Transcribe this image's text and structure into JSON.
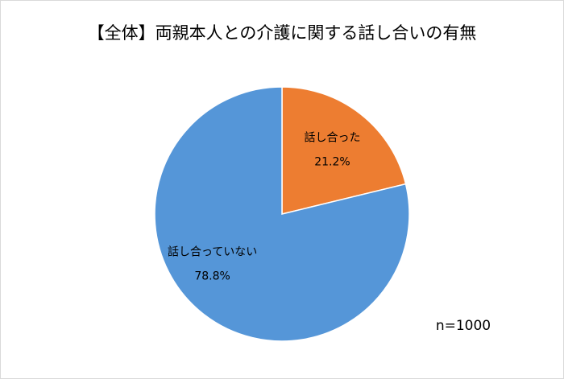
{
  "chart_data": {
    "type": "pie",
    "title": "【全体】両親本人との介護に関する話し合いの有無",
    "categories": [
      "話し合った",
      "話し合っていない"
    ],
    "values": [
      21.2,
      78.8
    ],
    "value_labels": [
      "21.2%",
      "78.8%"
    ],
    "colors": [
      "#ed7d31",
      "#5596d8"
    ],
    "annotation": "n=1000"
  }
}
